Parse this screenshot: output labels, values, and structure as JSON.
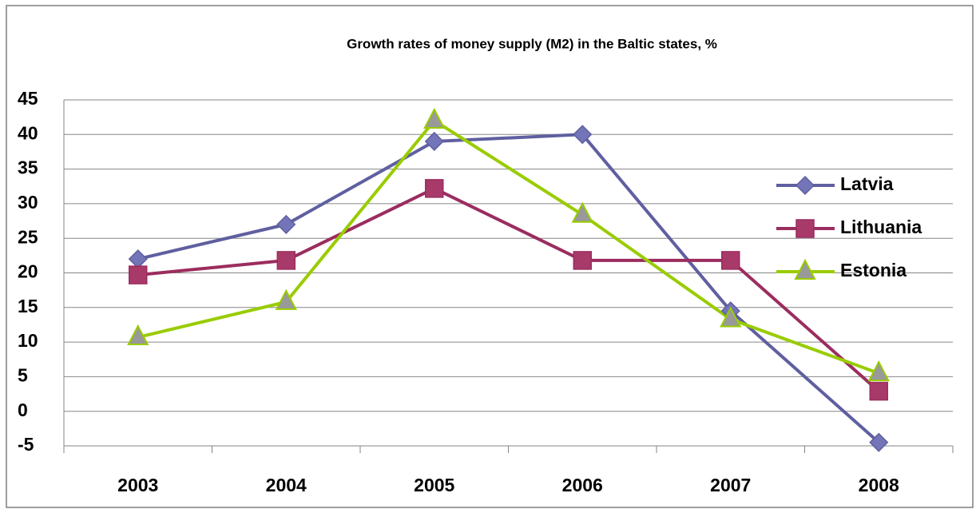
{
  "chart_data": {
    "type": "line",
    "title": "Growth rates of money supply (M2) in the Baltic states, %",
    "categories": [
      "2003",
      "2004",
      "2005",
      "2006",
      "2007",
      "2008"
    ],
    "series": [
      {
        "name": "Latvia",
        "color": "#5f5fa0",
        "marker": "diamond",
        "marker_color": "#7474b8",
        "values": [
          22.0,
          27.0,
          39.0,
          40.0,
          14.5,
          -4.5
        ]
      },
      {
        "name": "Lithuania",
        "color": "#9b2d5e",
        "marker": "square",
        "marker_color": "#a83a6a",
        "values": [
          19.7,
          21.8,
          32.2,
          21.8,
          21.8,
          2.9
        ]
      },
      {
        "name": "Estonia",
        "color": "#99cc00",
        "marker": "triangle",
        "marker_color": "#999999",
        "values": [
          10.7,
          15.8,
          42.0,
          28.4,
          13.3,
          5.5
        ]
      }
    ],
    "ylim": [
      -5,
      45
    ],
    "yticks": [
      -5,
      0,
      5,
      10,
      15,
      20,
      25,
      30,
      35,
      40,
      45
    ],
    "grid": true,
    "legend": "right"
  }
}
